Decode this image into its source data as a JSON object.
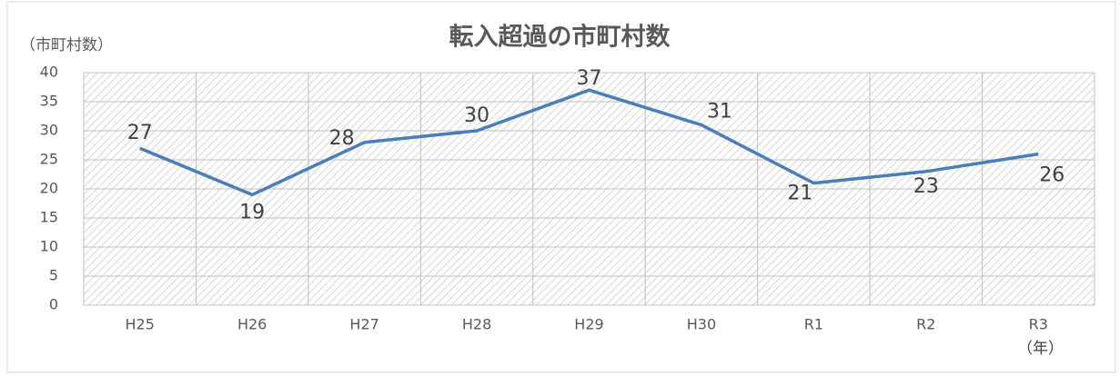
{
  "chart_data": {
    "type": "line",
    "title": "転入超過の市町村数",
    "y_label": "（市町村数）",
    "x_label": "（年）",
    "categories": [
      "H25",
      "H26",
      "H27",
      "H28",
      "H29",
      "H30",
      "R1",
      "R2",
      "R3"
    ],
    "values": [
      27,
      19,
      28,
      30,
      37,
      31,
      21,
      23,
      26
    ],
    "color": "#4a7ebb",
    "ylim": [
      0,
      40
    ],
    "yticks": [
      0,
      5,
      10,
      15,
      20,
      25,
      30,
      35,
      40
    ],
    "grid": true
  }
}
